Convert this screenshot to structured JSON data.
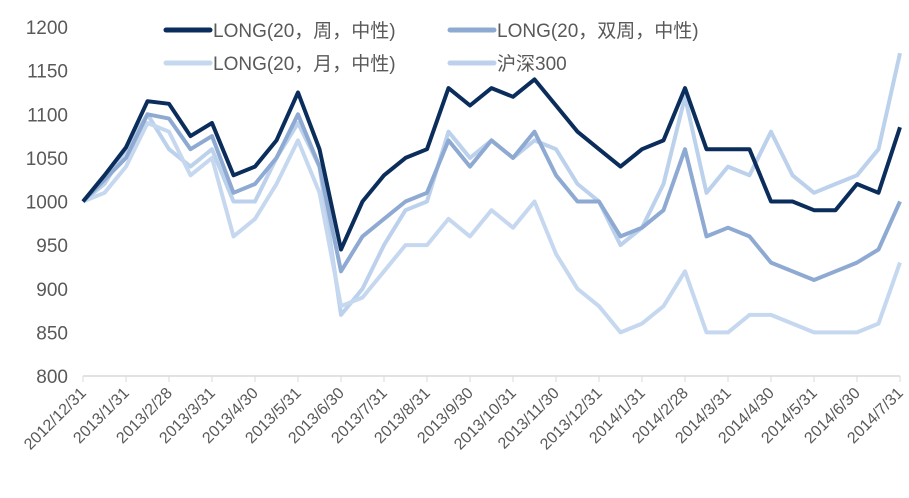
{
  "chart_data": {
    "type": "line",
    "title": "",
    "xlabel": "",
    "ylabel": "",
    "ylim": [
      800,
      1200
    ],
    "yticks": [
      800,
      850,
      900,
      950,
      1000,
      1050,
      1100,
      1150,
      1200
    ],
    "xtick_labels": [
      "2012/12/31",
      "2013/1/31",
      "2013/2/28",
      "2013/3/31",
      "2013/4/30",
      "2013/5/31",
      "2013/6/30",
      "2013/7/31",
      "2013/8/31",
      "2013/9/30",
      "2013/10/31",
      "2013/11/30",
      "2013/12/31",
      "2014/1/31",
      "2014/2/28",
      "2014/3/31",
      "2014/4/30",
      "2014/5/31",
      "2014/6/30",
      "2014/7/31"
    ],
    "x_step": "half-month",
    "legend_position": "top",
    "grid": false,
    "series": [
      {
        "name": "LONG(20，周，中性)",
        "color": "#0b2d5c",
        "values": [
          1000,
          1030,
          1062,
          1115,
          1112,
          1075,
          1090,
          1030,
          1040,
          1070,
          1125,
          1060,
          945,
          1000,
          1030,
          1050,
          1060,
          1130,
          1110,
          1130,
          1120,
          1140,
          1110,
          1080,
          1060,
          1040,
          1060,
          1070,
          1130,
          1060,
          1060,
          1060,
          1000,
          1000,
          990,
          990,
          1020,
          1010,
          1085
        ]
      },
      {
        "name": "LONG(20，双周，中性)",
        "color": "#8eaad2",
        "values": [
          1000,
          1025,
          1050,
          1100,
          1095,
          1060,
          1075,
          1010,
          1020,
          1050,
          1100,
          1040,
          920,
          960,
          980,
          1000,
          1010,
          1070,
          1040,
          1070,
          1050,
          1080,
          1030,
          1000,
          1000,
          960,
          970,
          990,
          1060,
          960,
          970,
          960,
          930,
          920,
          910,
          920,
          930,
          945,
          1000
        ]
      },
      {
        "name": "LONG(20，月，中性)",
        "color": "#c6d8ef",
        "values": [
          1000,
          1010,
          1040,
          1090,
          1080,
          1030,
          1050,
          960,
          980,
          1020,
          1070,
          1010,
          880,
          890,
          920,
          950,
          950,
          980,
          960,
          990,
          970,
          1000,
          940,
          900,
          880,
          850,
          860,
          880,
          920,
          850,
          850,
          870,
          870,
          860,
          850,
          850,
          850,
          860,
          930
        ]
      },
      {
        "name": "沪深300",
        "color": "#bcd1ec",
        "values": [
          1000,
          1020,
          1060,
          1100,
          1060,
          1040,
          1060,
          1000,
          1000,
          1050,
          1090,
          1040,
          870,
          900,
          950,
          990,
          1000,
          1080,
          1050,
          1070,
          1050,
          1070,
          1060,
          1020,
          1000,
          950,
          970,
          1020,
          1120,
          1010,
          1040,
          1030,
          1080,
          1030,
          1010,
          1020,
          1030,
          1060,
          1170
        ]
      }
    ]
  }
}
